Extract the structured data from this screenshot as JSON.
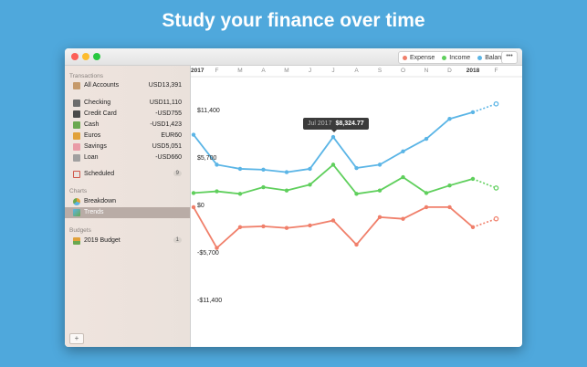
{
  "headline": "Study your finance over time",
  "legend": {
    "items": [
      {
        "label": "Expense",
        "color": "#f07f6a"
      },
      {
        "label": "Income",
        "color": "#5fcf5c"
      },
      {
        "label": "Balance",
        "color": "#5bb5e6"
      }
    ],
    "more": "•••"
  },
  "sidebar": {
    "sections": {
      "transactions": "Transactions",
      "charts": "Charts",
      "budgets": "Budgets"
    },
    "all_accounts": {
      "label": "All Accounts",
      "value": "USD13,391"
    },
    "accounts": [
      {
        "label": "Checking",
        "value": "USD11,110",
        "icon": "checkbook-icon",
        "color": "#6d6d6d"
      },
      {
        "label": "Credit Card",
        "value": "-USD755",
        "icon": "credit-card-icon",
        "color": "#4a4a4a"
      },
      {
        "label": "Cash",
        "value": "-USD1,423",
        "icon": "cash-icon",
        "color": "#6aa84f"
      },
      {
        "label": "Euros",
        "value": "EUR60",
        "icon": "euro-icon",
        "color": "#e1a13a"
      },
      {
        "label": "Savings",
        "value": "USD5,051",
        "icon": "piggy-bank-icon",
        "color": "#e99aa6"
      },
      {
        "label": "Loan",
        "value": "-USD660",
        "icon": "loan-icon",
        "color": "#a0a0a0"
      }
    ],
    "scheduled": {
      "label": "Scheduled",
      "badge": "9"
    },
    "breakdown": {
      "label": "Breakdown"
    },
    "trends": {
      "label": "Trends"
    },
    "budget": {
      "label": "2019 Budget",
      "badge": "1"
    },
    "add": "+"
  },
  "chart_data": {
    "type": "line",
    "x": [
      "2017",
      "F",
      "M",
      "A",
      "M",
      "J",
      "J",
      "A",
      "S",
      "O",
      "N",
      "D",
      "2018",
      "F"
    ],
    "y_ticks": [
      "$11,400",
      "$5,700",
      "$0",
      "-$5,700",
      "-$11,400"
    ],
    "ylim": [
      -11400,
      13000
    ],
    "series": [
      {
        "name": "Balance",
        "color": "#5bb5e6",
        "values": [
          8600,
          5000,
          4500,
          4400,
          4100,
          4500,
          8324.77,
          4600,
          5000,
          6600,
          8100,
          10500,
          11300,
          12300
        ]
      },
      {
        "name": "Income",
        "color": "#5fcf5c",
        "values": [
          1600,
          1800,
          1500,
          2300,
          1900,
          2600,
          5000,
          1500,
          1900,
          3500,
          1600,
          2500,
          3300,
          2200
        ]
      },
      {
        "name": "Expense",
        "color": "#f07f6a",
        "values": [
          -100,
          -5000,
          -2500,
          -2400,
          -2600,
          -2300,
          -1700,
          -4600,
          -1300,
          -1500,
          -100,
          -100,
          -2500,
          -1500
        ]
      }
    ],
    "projected_from_index": 12,
    "tooltip": {
      "month": "Jul 2017",
      "value": "$8,324.77",
      "series": "Balance",
      "index": 6
    }
  }
}
